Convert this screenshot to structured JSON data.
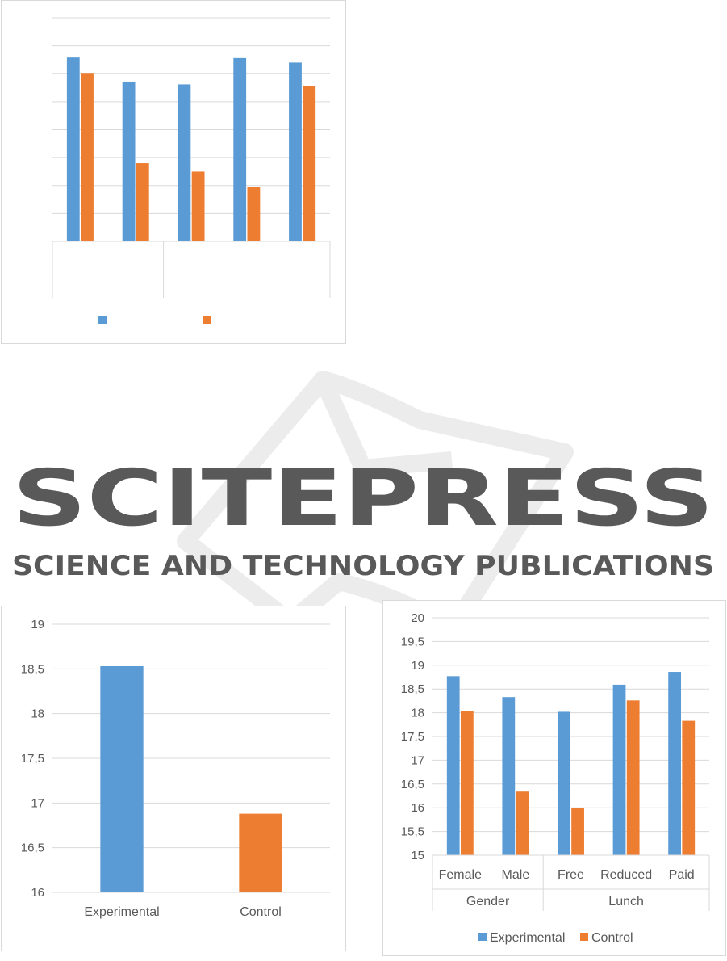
{
  "colors": {
    "experimental": "#5b9bd5",
    "control": "#ed7d31",
    "grid": "#d9d9d9",
    "axis_text": "#595959"
  },
  "chart_data": [
    {
      "type": "bar",
      "title": "",
      "subtitle": "",
      "tick_labels_visible": false,
      "categories": [
        "",
        "",
        "",
        "",
        ""
      ],
      "groups": [
        ""
      ],
      "series": [
        {
          "name": "",
          "color": "#5b9bd5",
          "values": [
            18.29,
            17.86,
            17.81,
            18.28,
            18.2
          ]
        },
        {
          "name": "",
          "color": "#ed7d31",
          "values": [
            18.0,
            16.4,
            16.25,
            15.98,
            17.78
          ]
        }
      ],
      "ylim": [
        15,
        19
      ],
      "ystep": 0.5,
      "grid": true,
      "legend": "bottom"
    },
    {
      "type": "bar",
      "title": "",
      "categories": [
        "Experimental",
        "Control"
      ],
      "series": [
        {
          "name": "",
          "values": [
            18.53,
            16.88
          ],
          "colors": [
            "#5b9bd5",
            "#ed7d31"
          ]
        }
      ],
      "ylim": [
        16,
        19
      ],
      "ystep": 0.5,
      "ytick_labels": [
        "16",
        "16,5",
        "17",
        "17,5",
        "18",
        "18,5",
        "19"
      ],
      "grid": true,
      "legend": "none"
    },
    {
      "type": "bar",
      "title": "",
      "categories": [
        "Female",
        "Male",
        "Free",
        "Reduced",
        "Paid"
      ],
      "groups": [
        {
          "label": "Gender",
          "span": 2
        },
        {
          "label": "Lunch",
          "span": 3
        }
      ],
      "series": [
        {
          "name": "Experimental",
          "color": "#5b9bd5",
          "values": [
            18.77,
            18.33,
            18.02,
            18.59,
            18.86
          ]
        },
        {
          "name": "Control",
          "color": "#ed7d31",
          "values": [
            18.04,
            16.34,
            16.0,
            18.26,
            17.83
          ]
        }
      ],
      "ylim": [
        15,
        20
      ],
      "ystep": 0.5,
      "ytick_labels": [
        "15",
        "15,5",
        "16",
        "16,5",
        "17",
        "17,5",
        "18",
        "18,5",
        "19",
        "19,5",
        "20"
      ],
      "grid": true,
      "legend": "bottom"
    }
  ],
  "watermark": {
    "brand": "SCITEPRESS",
    "tagline": "SCIENCE AND TECHNOLOGY PUBLICATIONS"
  }
}
